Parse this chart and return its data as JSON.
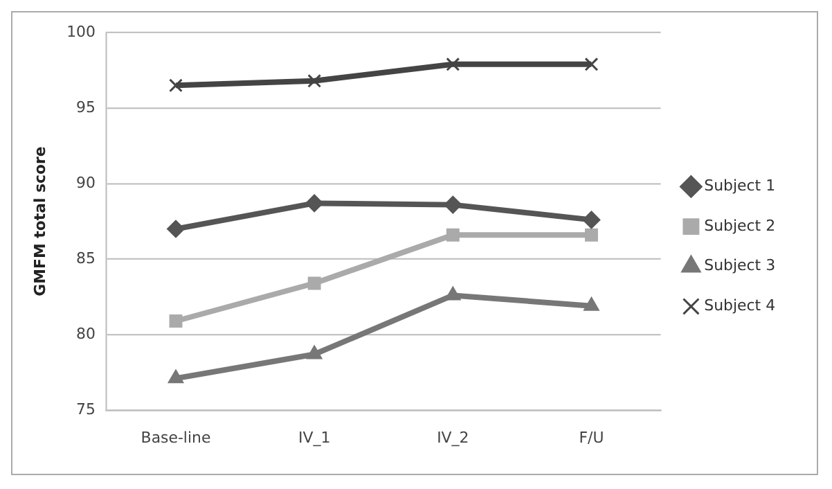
{
  "chart_data": {
    "type": "line",
    "ylabel": "GMFM total score",
    "categories": [
      "Base-line",
      "IV_1",
      "IV_2",
      "F/U"
    ],
    "series": [
      {
        "name": "Subject 1",
        "color": "#555555",
        "marker": "diamond",
        "values": [
          87.0,
          88.7,
          88.6,
          87.6
        ]
      },
      {
        "name": "Subject 2",
        "color": "#aaaaaa",
        "marker": "square",
        "values": [
          80.9,
          83.4,
          86.6,
          86.6
        ]
      },
      {
        "name": "Subject 3",
        "color": "#777777",
        "marker": "triangle",
        "values": [
          77.1,
          78.7,
          82.6,
          81.9
        ]
      },
      {
        "name": "Subject 4",
        "color": "#444444",
        "marker": "cross",
        "values": [
          96.5,
          96.8,
          97.9,
          97.9
        ]
      }
    ],
    "ylim": [
      75,
      100
    ],
    "yticks": [
      75,
      80,
      85,
      90,
      95,
      100
    ],
    "grid": "y",
    "legend": "right"
  }
}
